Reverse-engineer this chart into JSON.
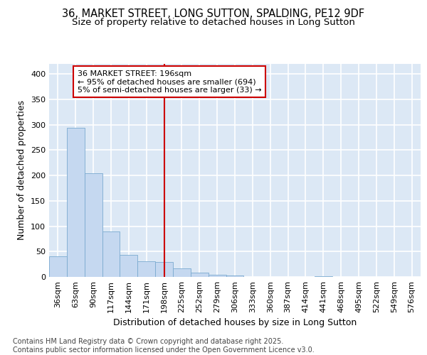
{
  "title_line1": "36, MARKET STREET, LONG SUTTON, SPALDING, PE12 9DF",
  "title_line2": "Size of property relative to detached houses in Long Sutton",
  "xlabel": "Distribution of detached houses by size in Long Sutton",
  "ylabel": "Number of detached properties",
  "categories": [
    "36sqm",
    "63sqm",
    "90sqm",
    "117sqm",
    "144sqm",
    "171sqm",
    "198sqm",
    "225sqm",
    "252sqm",
    "279sqm",
    "306sqm",
    "333sqm",
    "360sqm",
    "387sqm",
    "414sqm",
    "441sqm",
    "468sqm",
    "495sqm",
    "522sqm",
    "549sqm",
    "576sqm"
  ],
  "values": [
    40,
    294,
    205,
    90,
    43,
    31,
    29,
    17,
    8,
    4,
    3,
    0,
    0,
    0,
    0,
    2,
    0,
    0,
    0,
    0,
    0
  ],
  "bar_color": "#c5d8f0",
  "bar_edge_color": "#7aaad0",
  "vline_x_index": 6,
  "vline_color": "#cc0000",
  "annotation_text": "36 MARKET STREET: 196sqm\n← 95% of detached houses are smaller (694)\n5% of semi-detached houses are larger (33) →",
  "annotation_box_facecolor": "#ffffff",
  "annotation_box_edgecolor": "#cc0000",
  "ylim": [
    0,
    420
  ],
  "yticks": [
    0,
    50,
    100,
    150,
    200,
    250,
    300,
    350,
    400
  ],
  "plot_bg_color": "#dce8f5",
  "figure_bg_color": "#ffffff",
  "grid_color": "#ffffff",
  "footnote": "Contains HM Land Registry data © Crown copyright and database right 2025.\nContains public sector information licensed under the Open Government Licence v3.0.",
  "title_fontsize": 10.5,
  "subtitle_fontsize": 9.5,
  "axis_label_fontsize": 9,
  "tick_fontsize": 8,
  "annotation_fontsize": 8,
  "footnote_fontsize": 7
}
